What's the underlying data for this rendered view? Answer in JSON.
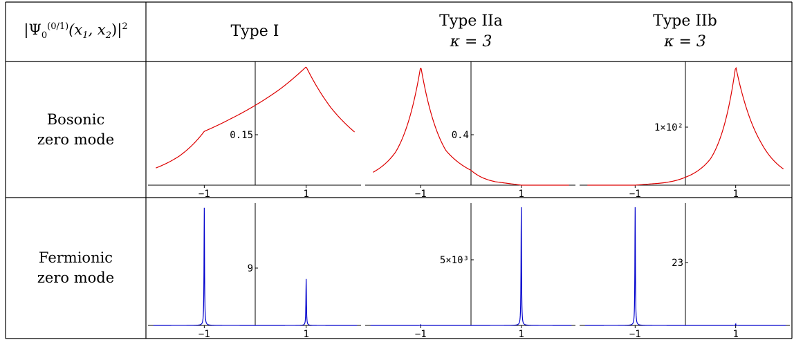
{
  "table": {
    "corner": {
      "pre": "|Ψ",
      "sub": "0",
      "sup": "(0/1)",
      "args": "(x",
      "a1": "1",
      "comma": ", x",
      "a2": "2",
      "close": ")|",
      "pow": "2"
    },
    "columns": [
      {
        "line1": "Type I",
        "line2": ""
      },
      {
        "line1": "Type IIa",
        "line2": "κ = 3"
      },
      {
        "line1": "Type IIb",
        "line2": "κ = 3"
      }
    ],
    "rows": [
      {
        "line1": "Bosonic",
        "line2": "zero mode"
      },
      {
        "line1": "Fermionic",
        "line2": "zero mode"
      }
    ]
  },
  "chart_data": [
    {
      "type": "line",
      "row": "Bosonic zero mode",
      "column": "Type I",
      "color": "#dd0000",
      "xticks": [
        "−1",
        "1"
      ],
      "ytick": "0.15",
      "x": [
        -2.0,
        -1.5,
        -1.0,
        -0.5,
        0.0,
        0.5,
        1.0,
        1.5,
        2.0
      ],
      "y": [
        0.035,
        0.062,
        0.116,
        0.142,
        0.172,
        0.208,
        0.255,
        0.165,
        0.11
      ]
    },
    {
      "type": "line",
      "row": "Bosonic zero mode",
      "column": "Type IIa",
      "color": "#dd0000",
      "xticks": [
        "−1",
        "1"
      ],
      "ytick": "0.4",
      "x": [
        -2.0,
        -1.5,
        -1.0,
        -0.5,
        0.0,
        0.5,
        1.0,
        2.0,
        3.0
      ],
      "y": [
        0.07,
        0.2,
        0.72,
        0.21,
        0.09,
        0.02,
        0.0,
        0.0,
        0.0
      ]
    },
    {
      "type": "line",
      "row": "Bosonic zero mode",
      "column": "Type IIb",
      "color": "#dd0000",
      "xticks": [
        "−1",
        "1"
      ],
      "ytick": "1×10²",
      "x": [
        -2.0,
        -1.0,
        -0.5,
        0.0,
        0.5,
        1.0,
        1.5,
        2.0
      ],
      "y": [
        0.0,
        0.0,
        3.0,
        12.0,
        40.0,
        180.0,
        65.0,
        22.0
      ]
    },
    {
      "type": "line",
      "row": "Fermionic zero mode",
      "column": "Type I",
      "color": "#0000cc",
      "xticks": [
        "−1",
        "1"
      ],
      "ytick": "9",
      "x": [
        -1.0,
        1.0
      ],
      "y": [
        21.0,
        8.3
      ]
    },
    {
      "type": "line",
      "row": "Fermionic zero mode",
      "column": "Type IIa",
      "color": "#0000cc",
      "xticks": [
        "−1",
        "1"
      ],
      "ytick": "5×10³",
      "x": [
        -1.0,
        1.0
      ],
      "y": [
        60.0,
        11000.0
      ]
    },
    {
      "type": "line",
      "row": "Fermionic zero mode",
      "column": "Type IIb",
      "color": "#0000cc",
      "xticks": [
        "−1",
        "1"
      ],
      "ytick": "23",
      "x": [
        -1.0,
        1.0
      ],
      "y": [
        55.0,
        0.6
      ]
    }
  ]
}
